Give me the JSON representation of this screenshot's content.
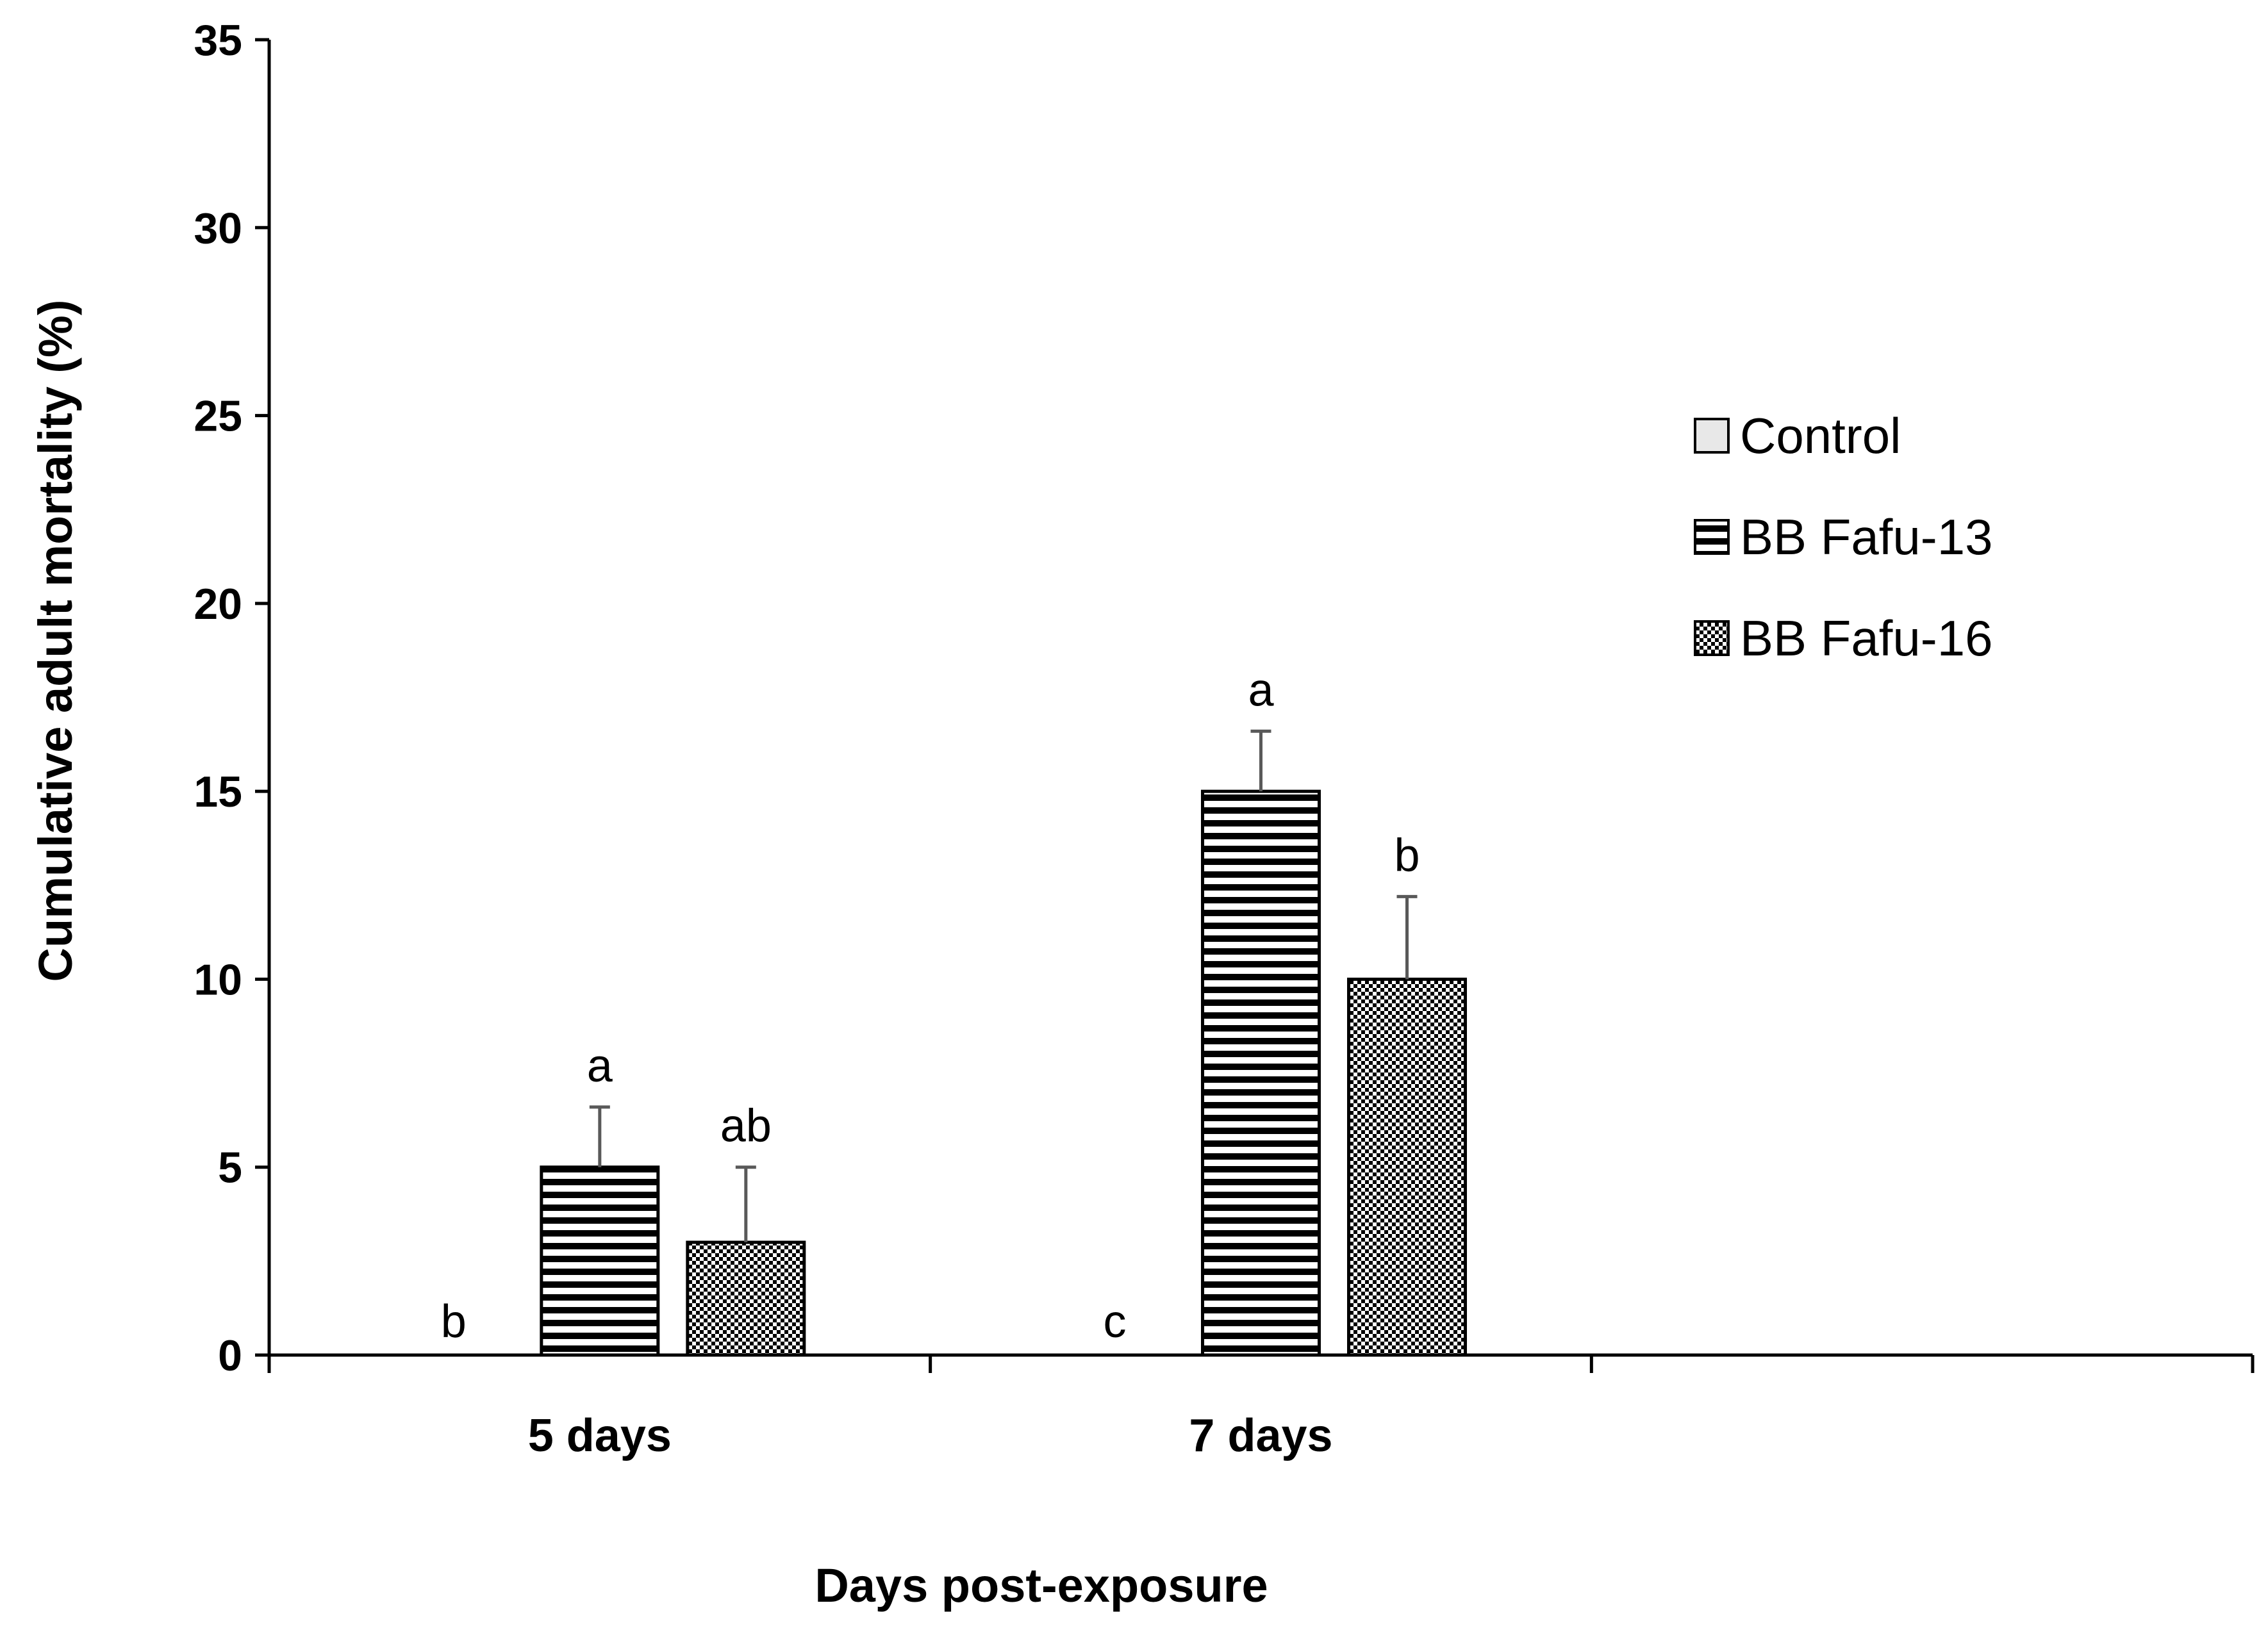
{
  "chart_data": {
    "type": "bar",
    "categories": [
      "5 days",
      "7 days"
    ],
    "series": [
      {
        "name": "Control",
        "values": [
          0,
          0
        ],
        "errors": [
          0,
          0
        ],
        "letters": [
          "b",
          "c"
        ],
        "pattern": "plain"
      },
      {
        "name": "BB Fafu-13",
        "values": [
          5,
          15
        ],
        "errors": [
          1.6,
          1.6
        ],
        "letters": [
          "a",
          "a"
        ],
        "pattern": "hstripes"
      },
      {
        "name": "BB Fafu-16",
        "values": [
          3,
          10
        ],
        "errors": [
          2,
          2.2
        ],
        "letters": [
          "ab",
          "b"
        ],
        "pattern": "checker"
      }
    ],
    "xlabel": "Days post-exposure",
    "ylabel": "Cumulative adult mortality (%)",
    "ylim": [
      0,
      35
    ],
    "yticks": [
      0,
      5,
      10,
      15,
      20,
      25,
      30,
      35
    ],
    "grid": false,
    "legend_position": "right",
    "colors": {
      "bar_stroke": "#000000",
      "error_bar": "#595959",
      "control_fill": "#e8e8e8",
      "axis": "#000000"
    }
  }
}
